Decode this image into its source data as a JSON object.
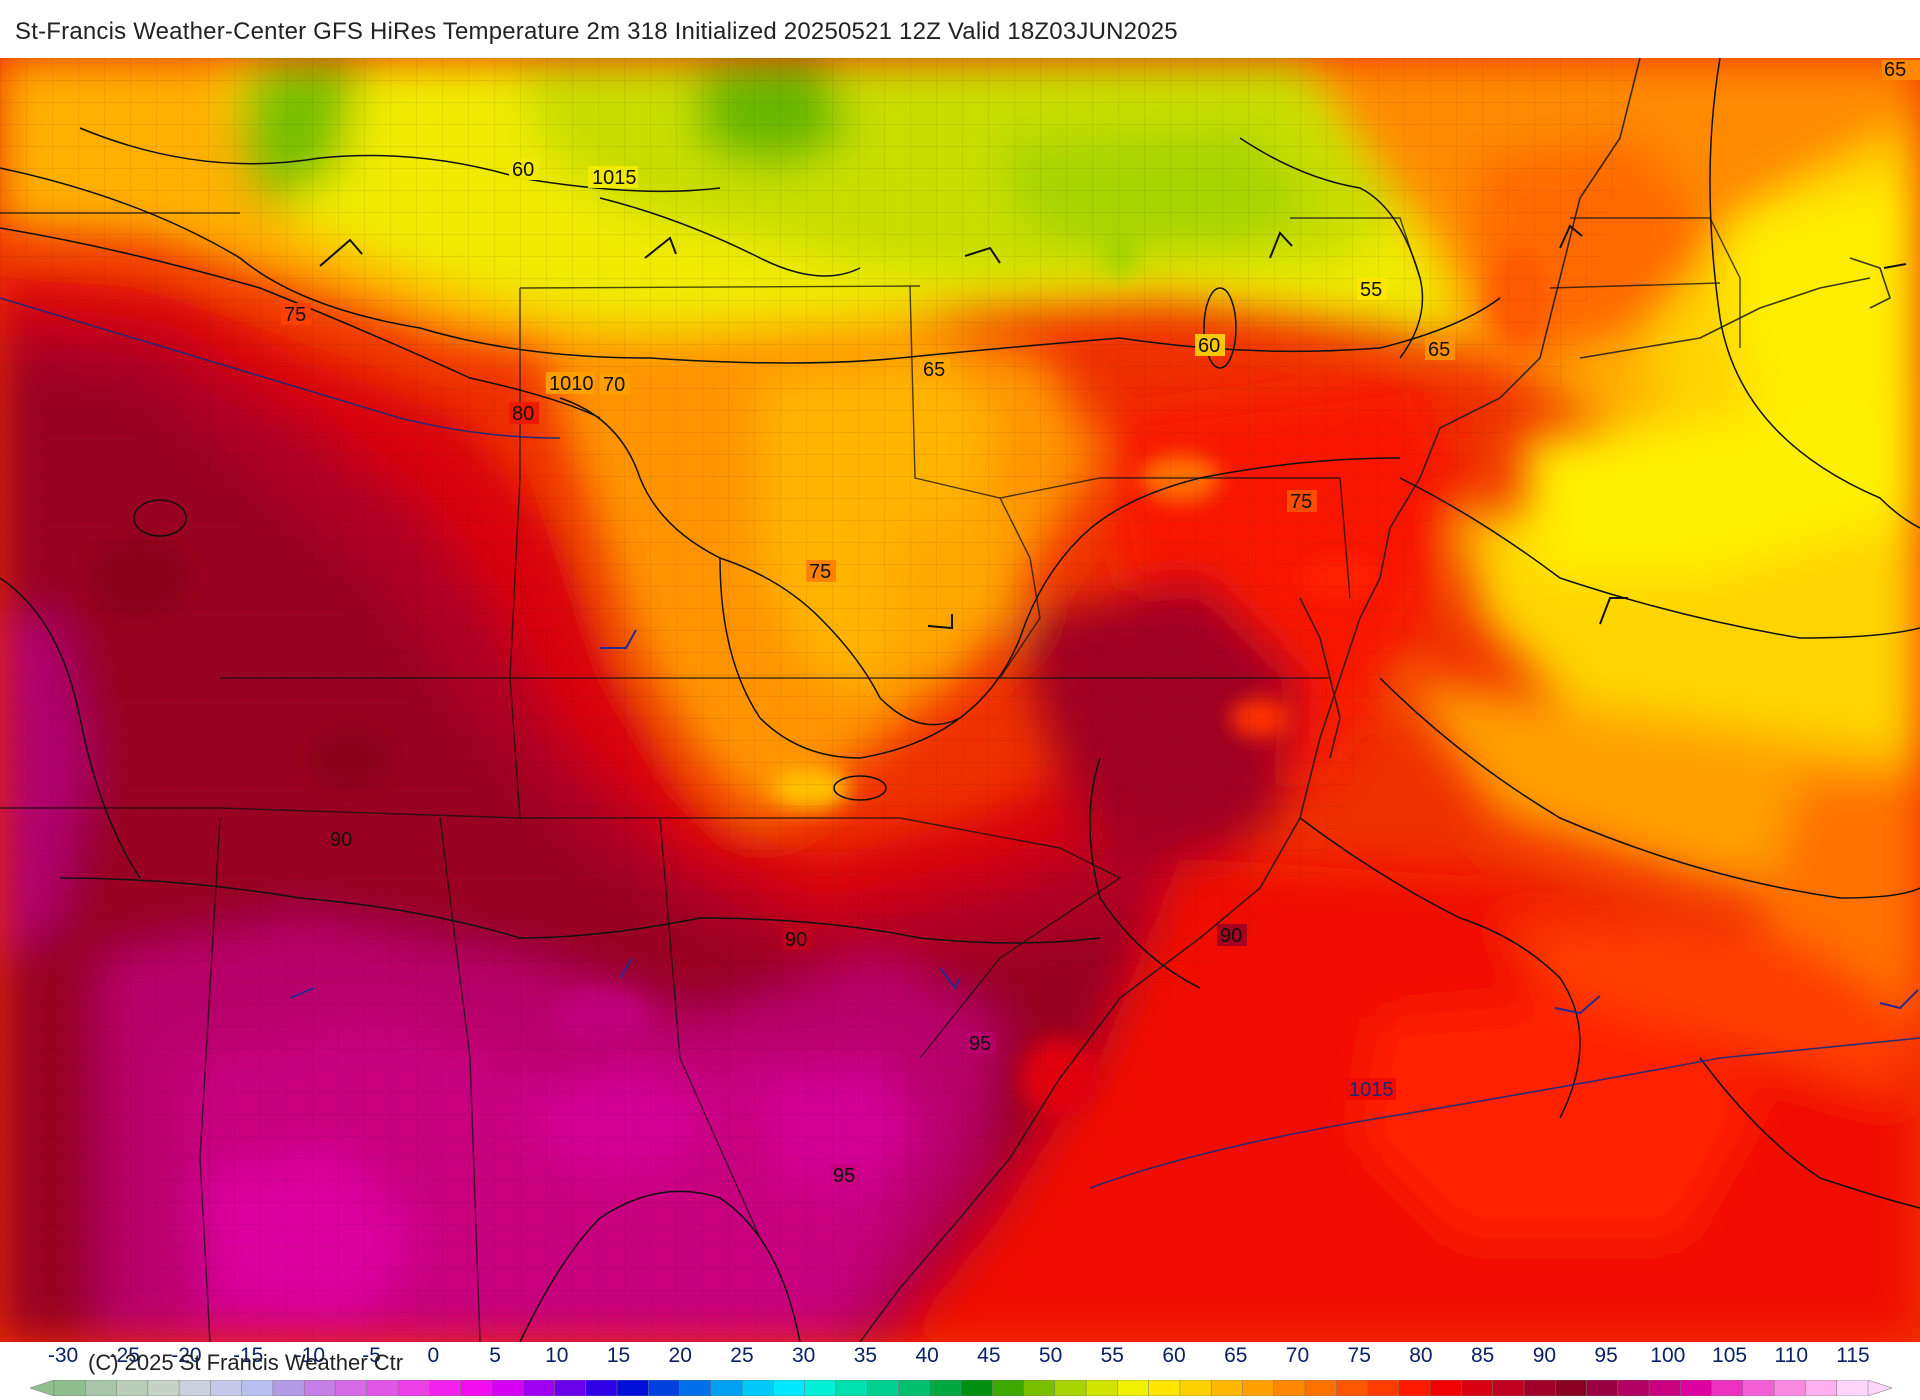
{
  "title": "St-Francis Weather-Center GFS HiRes Temperature 2m  318 Initialized 20250521 12Z Valid 18Z03JUN2025",
  "copyright": "(C) 2025 St Francis Weather Ctr",
  "colorbar": {
    "labels": [
      "-30",
      "-25",
      "-20",
      "-15",
      "-10",
      "-5",
      "0",
      "5",
      "10",
      "15",
      "20",
      "25",
      "30",
      "35",
      "40",
      "45",
      "50",
      "55",
      "60",
      "65",
      "70",
      "75",
      "80",
      "85",
      "90",
      "95",
      "100",
      "105",
      "110",
      "115"
    ],
    "colors": [
      "#8fbf8f",
      "#a7c6a7",
      "#b9cdb9",
      "#c6d2c6",
      "#ccd0dc",
      "#c5c8e6",
      "#b8bff0",
      "#b49be6",
      "#c47ee6",
      "#d46ae6",
      "#e055e6",
      "#ec3fe6",
      "#f422ee",
      "#f20cf2",
      "#d600f5",
      "#a100f0",
      "#6a00ec",
      "#3000e6",
      "#0010d8",
      "#0040e0",
      "#0070ea",
      "#00a0f2",
      "#00c8f8",
      "#00e8ff",
      "#00f0d8",
      "#00e0b0",
      "#00d090",
      "#00c070",
      "#00a840",
      "#009010",
      "#3ca800",
      "#78c000",
      "#a8d400",
      "#d0e400",
      "#f0f000",
      "#ffe600",
      "#ffd000",
      "#ffb800",
      "#ffa000",
      "#ff8800",
      "#ff7000",
      "#ff5800",
      "#ff3c00",
      "#ff1800",
      "#f00000",
      "#d80010",
      "#c00020",
      "#a00028",
      "#8a0022",
      "#9a0040",
      "#b00060",
      "#c80080",
      "#dc00a0",
      "#ec30c0",
      "#f460d4",
      "#f888e0",
      "#fcb0ec",
      "#ffd4f8"
    ]
  },
  "map": {
    "contour_labels": [
      "1015",
      "60",
      "75",
      "1010",
      "70",
      "80",
      "65",
      "60",
      "55",
      "65",
      "75",
      "75",
      "90",
      "90",
      "90",
      "95",
      "95",
      "1015",
      "65"
    ]
  }
}
